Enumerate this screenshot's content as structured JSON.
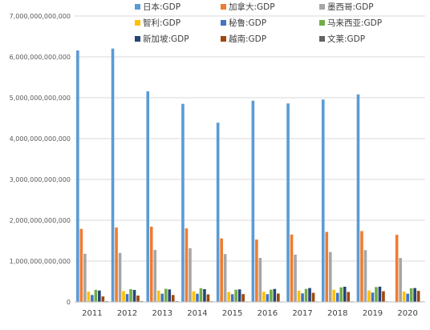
{
  "chart_data": {
    "type": "bar",
    "ylim": [
      0,
      7000000000000
    ],
    "y_ticks": [
      "0",
      "1,000,000,000,000",
      "2,000,000,000,000",
      "3,000,000,000,000",
      "4,000,000,000,000",
      "5,000,000,000,000",
      "6,000,000,000,000",
      "7,000,000,000,000"
    ],
    "grid": true,
    "legend_position": "top",
    "categories": [
      "2011",
      "2012",
      "2013",
      "2014",
      "2015",
      "2016",
      "2017",
      "2018",
      "2019",
      "2020"
    ],
    "series": [
      {
        "name": "日本:GDP",
        "color": "#5B9BD5",
        "values": [
          6157000000000,
          6203000000000,
          5156000000000,
          4850000000000,
          4389000000000,
          4927000000000,
          4860000000000,
          4955000000000,
          5082000000000,
          null
        ]
      },
      {
        "name": "加拿大:GDP",
        "color": "#ED7D31",
        "values": [
          1789000000000,
          1824000000000,
          1843000000000,
          1802000000000,
          1556000000000,
          1528000000000,
          1650000000000,
          1716000000000,
          1736000000000,
          1644000000000
        ]
      },
      {
        "name": "墨西哥:GDP",
        "color": "#A5A5A5",
        "values": [
          1180000000000,
          1201000000000,
          1274000000000,
          1315000000000,
          1172000000000,
          1078000000000,
          1159000000000,
          1222000000000,
          1269000000000,
          1076000000000
        ]
      },
      {
        "name": "智利:GDP",
        "color": "#FFC000",
        "values": [
          252000000000,
          267000000000,
          278000000000,
          260000000000,
          243000000000,
          250000000000,
          277000000000,
          298000000000,
          279000000000,
          253000000000
        ]
      },
      {
        "name": "秘鲁:GDP",
        "color": "#4472C4",
        "values": [
          171000000000,
          193000000000,
          202000000000,
          201000000000,
          190000000000,
          191000000000,
          211000000000,
          222000000000,
          229000000000,
          203000000000
        ]
      },
      {
        "name": "马来西亚:GDP",
        "color": "#70AD47",
        "values": [
          298000000000,
          314000000000,
          323000000000,
          338000000000,
          301000000000,
          301000000000,
          319000000000,
          358000000000,
          365000000000,
          337000000000
        ]
      },
      {
        "name": "新加坡:GDP",
        "color": "#264478",
        "values": [
          280000000000,
          295000000000,
          307000000000,
          314000000000,
          308000000000,
          319000000000,
          341000000000,
          373000000000,
          375000000000,
          340000000000
        ]
      },
      {
        "name": "越南:GDP",
        "color": "#9E480E",
        "values": [
          135000000000,
          156000000000,
          171000000000,
          186000000000,
          193000000000,
          205000000000,
          224000000000,
          245000000000,
          262000000000,
          271000000000
        ]
      },
      {
        "name": "文莱:GDP",
        "color": "#636363",
        "values": [
          18500000000,
          19000000000,
          18100000000,
          17100000000,
          12900000000,
          11400000000,
          12100000000,
          13600000000,
          13500000000,
          12000000000
        ]
      }
    ]
  }
}
